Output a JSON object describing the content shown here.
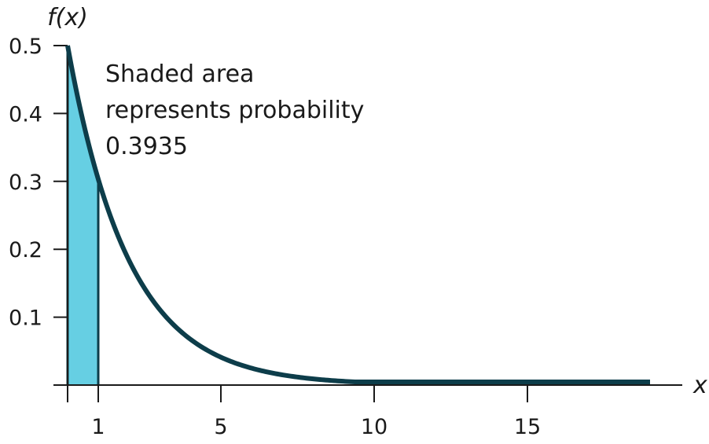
{
  "chart_data": {
    "type": "area",
    "title": "",
    "xlabel": "x",
    "ylabel": "f(x)",
    "function": "f(x) = 0.5e^(-0.5x)",
    "decay_rate": 0.5,
    "xlim": [
      0,
      19
    ],
    "ylim": [
      0,
      0.5
    ],
    "x_ticks": [
      1,
      5,
      10,
      15
    ],
    "x_tick_labels": [
      "1",
      "5",
      "10",
      "15"
    ],
    "y_ticks": [
      0.1,
      0.2,
      0.3,
      0.4,
      0.5
    ],
    "y_tick_labels": [
      "0.1",
      "0.2",
      "0.3",
      "0.4",
      "0.5"
    ],
    "shaded_region": {
      "from": 0,
      "to": 1
    },
    "annotation": [
      "Shaded area",
      "represents probability",
      "0.3935"
    ],
    "grid": false,
    "colors": {
      "curve": "#0d3d4a",
      "shade": "#66cfe3",
      "axis": "#1a1a1a"
    }
  }
}
